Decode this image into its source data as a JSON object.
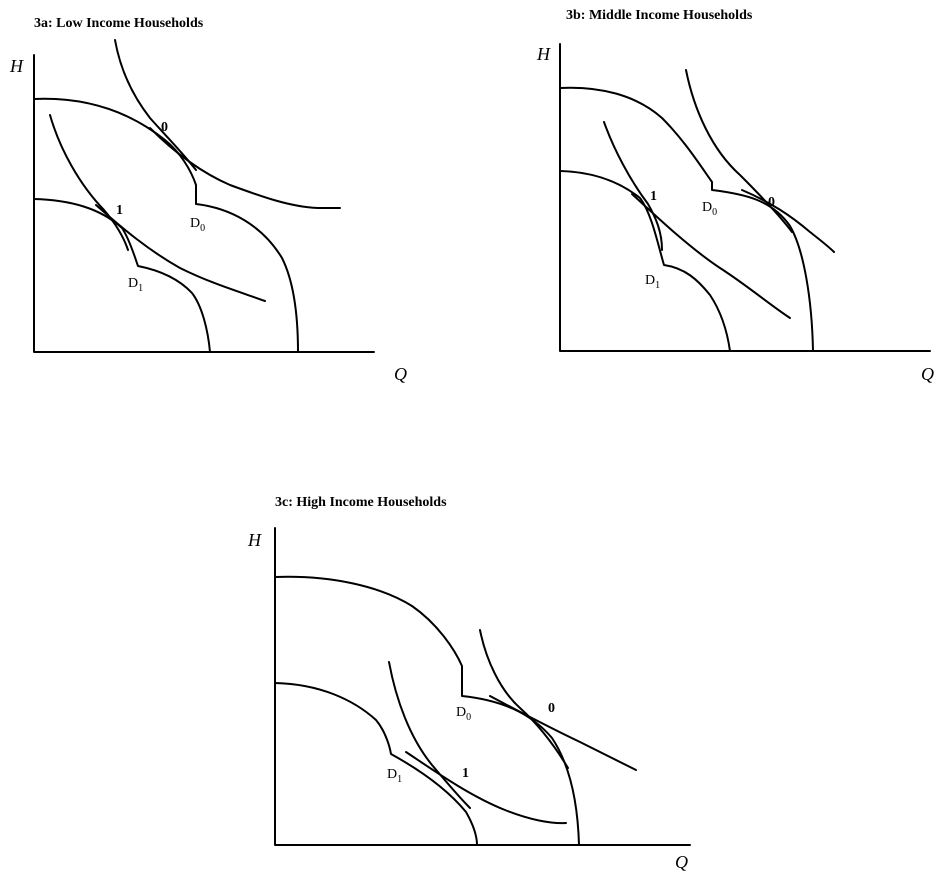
{
  "panels": [
    {
      "id": "3a",
      "title": "3a: Low Income Households",
      "y_axis_label": "H",
      "x_axis_label": "Q",
      "equilibrium_labels": [
        "0",
        "1"
      ],
      "demand_labels": [
        {
          "main": "D",
          "sub": "0"
        },
        {
          "main": "D",
          "sub": "1"
        }
      ]
    },
    {
      "id": "3b",
      "title": "3b: Middle Income Households",
      "y_axis_label": "H",
      "x_axis_label": "Q",
      "equilibrium_labels": [
        "1",
        "0"
      ],
      "demand_labels": [
        {
          "main": "D",
          "sub": "0"
        },
        {
          "main": "D",
          "sub": "1"
        }
      ]
    },
    {
      "id": "3c",
      "title": "3c: High Income Households",
      "y_axis_label": "H",
      "x_axis_label": "Q",
      "equilibrium_labels": [
        "0",
        "1"
      ],
      "demand_labels": [
        {
          "main": "D",
          "sub": "0"
        },
        {
          "main": "D",
          "sub": "1"
        }
      ]
    }
  ]
}
